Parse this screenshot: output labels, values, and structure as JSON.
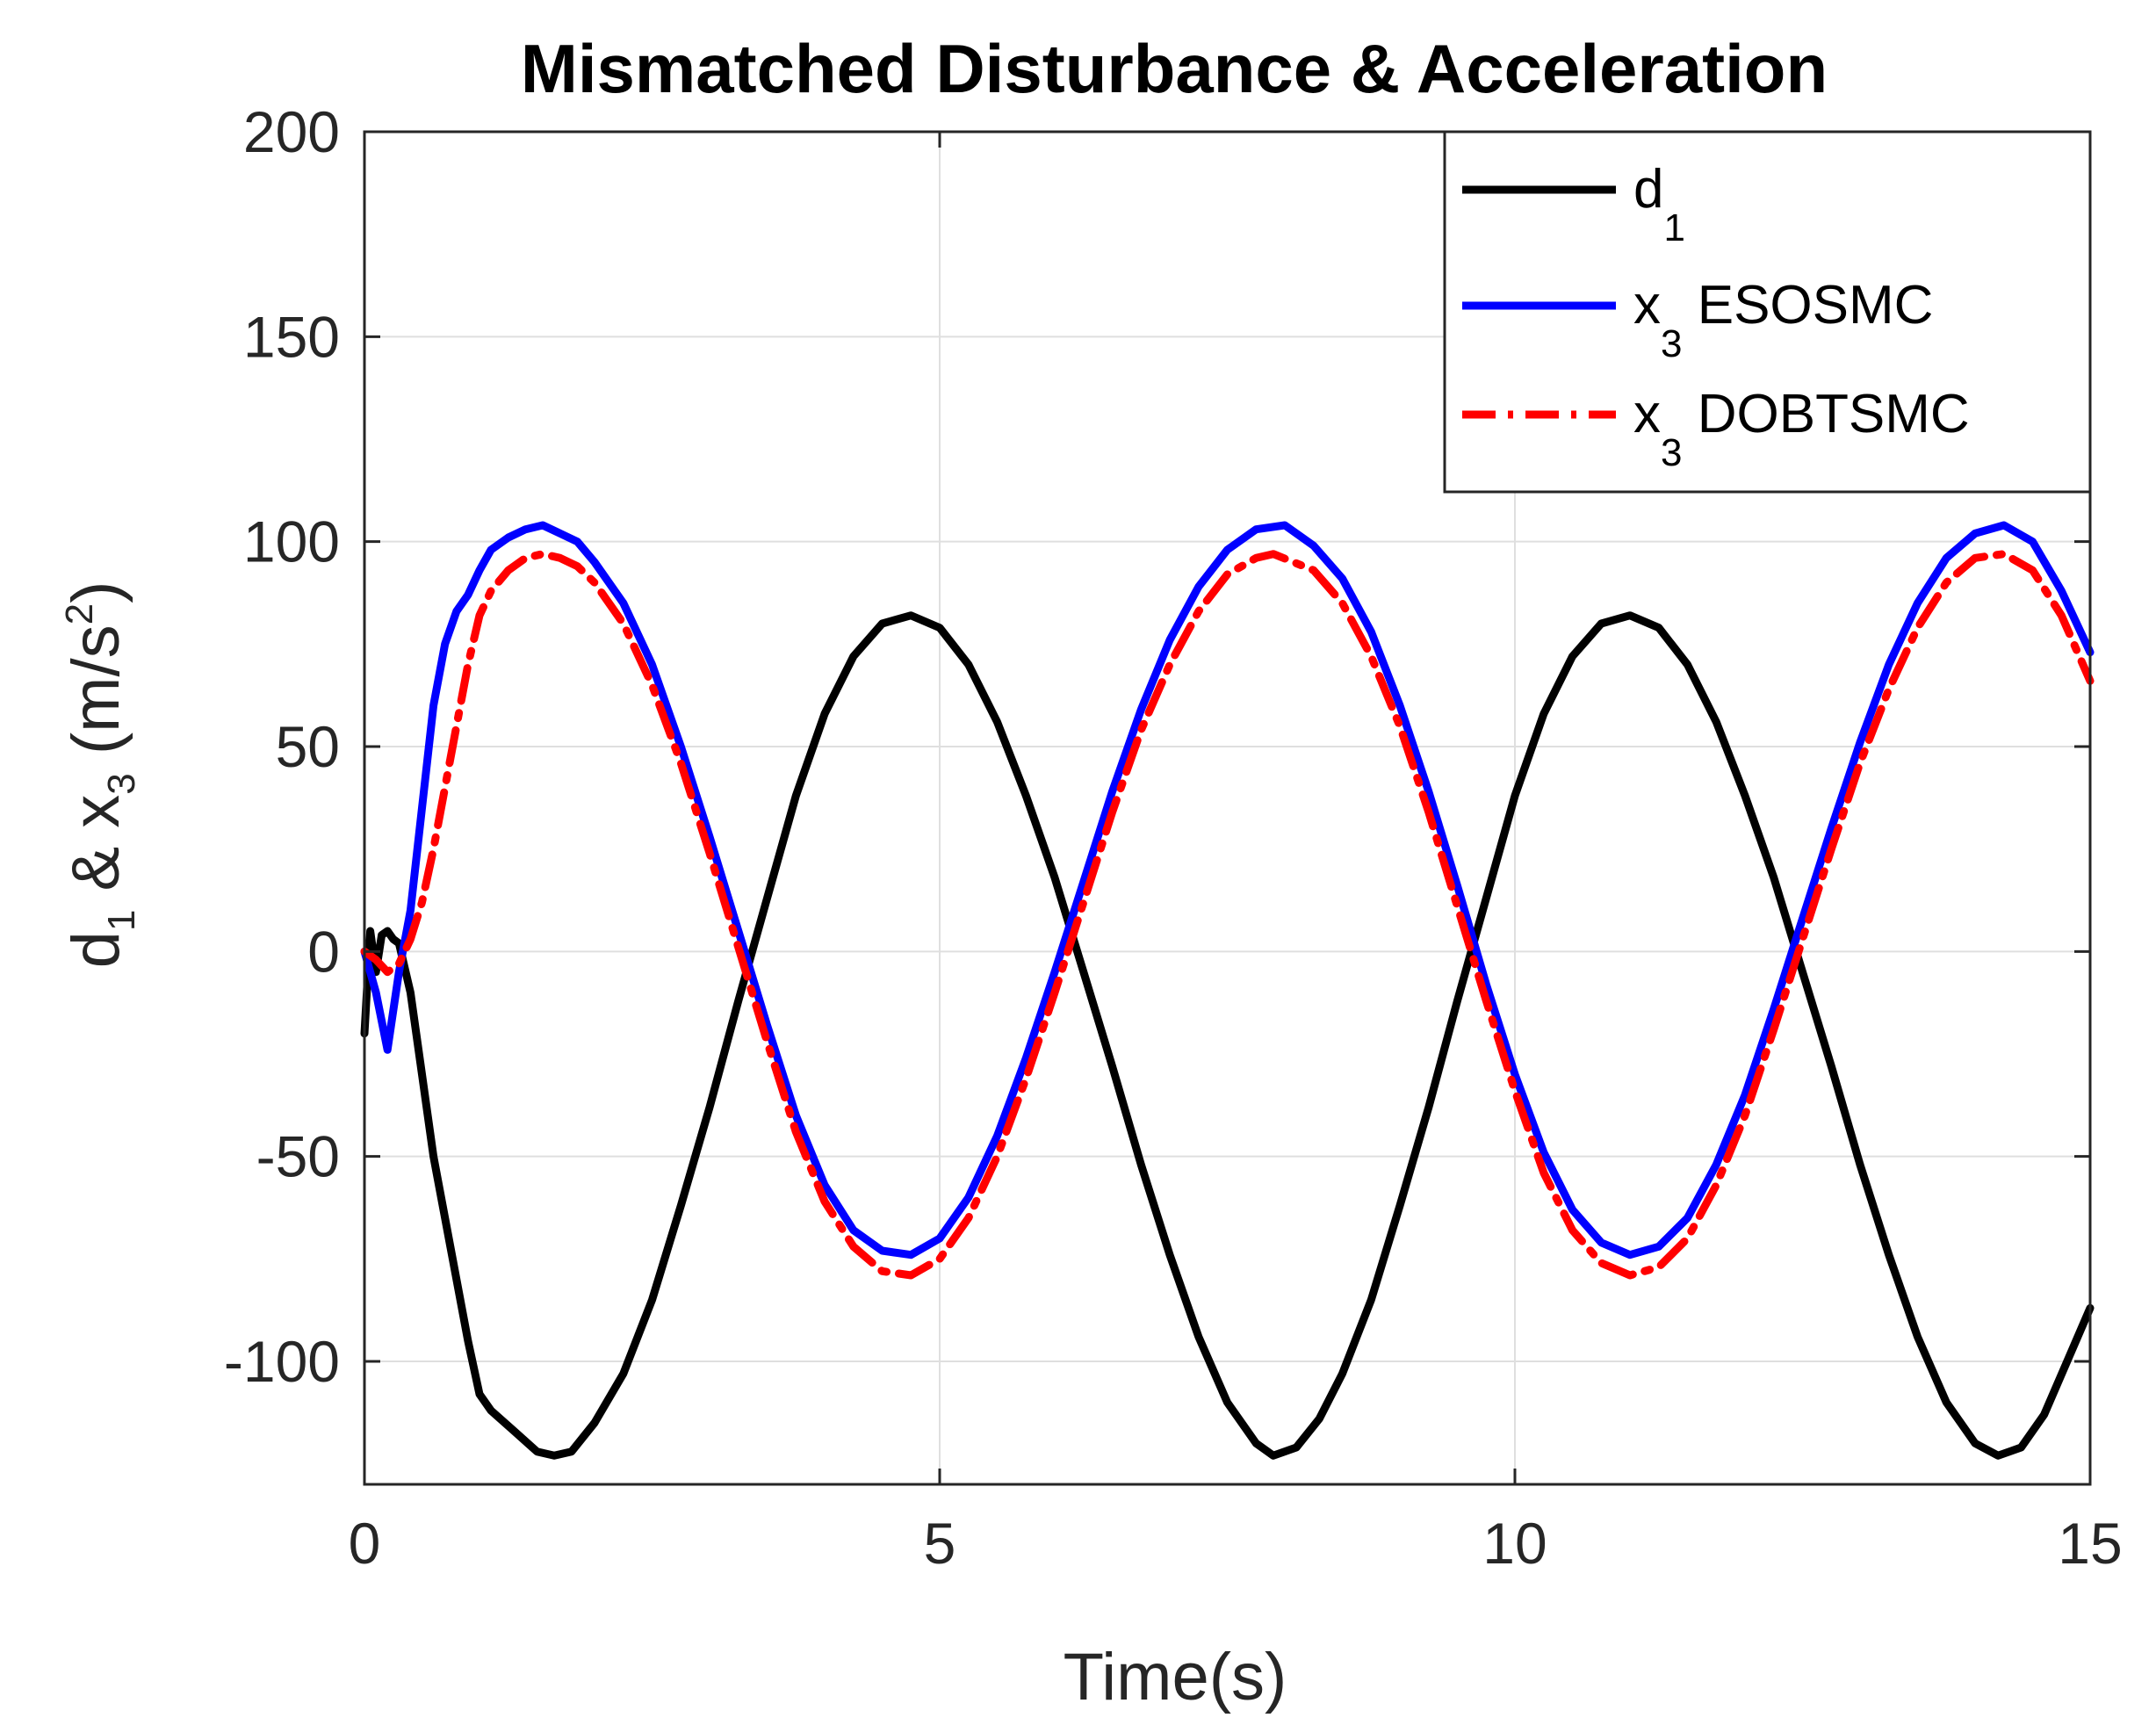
{
  "chart_data": {
    "type": "line",
    "title": "Mismatched Disturbance & Acceleration",
    "xlabel": "Time(s)",
    "ylabel": {
      "parts": [
        "d",
        "1",
        " & x",
        "3",
        " (m/s",
        "2",
        ")"
      ]
    },
    "xlim": [
      0,
      15
    ],
    "ylim": [
      -130,
      200
    ],
    "xticks": [
      0,
      5,
      10,
      15
    ],
    "yticks": [
      -100,
      -50,
      0,
      50,
      100,
      150,
      200
    ],
    "xtick_labels": [
      "0",
      "5",
      "10",
      "15"
    ],
    "ytick_labels": [
      "-100",
      "-50",
      "0",
      "50",
      "100",
      "150",
      "200"
    ],
    "grid": true,
    "legend_position": "top-right",
    "series": [
      {
        "name": "d1",
        "legend_base": "d",
        "legend_sub": "1",
        "legend_suffix": "",
        "color": "#000000",
        "dash": "solid",
        "points": [
          [
            0,
            -20
          ],
          [
            0.05,
            5
          ],
          [
            0.1,
            -5
          ],
          [
            0.15,
            4
          ],
          [
            0.2,
            5
          ],
          [
            0.25,
            3
          ],
          [
            0.3,
            2
          ],
          [
            0.4,
            -10
          ],
          [
            0.5,
            -30
          ],
          [
            0.6,
            -50
          ],
          [
            0.7,
            -65
          ],
          [
            0.8,
            -80
          ],
          [
            0.9,
            -95
          ],
          [
            1.0,
            -108
          ],
          [
            1.1,
            -112
          ],
          [
            1.3,
            -117
          ],
          [
            1.5,
            -122
          ],
          [
            1.65,
            -123
          ],
          [
            1.8,
            -122
          ],
          [
            2.0,
            -115
          ],
          [
            2.25,
            -103
          ],
          [
            2.5,
            -85
          ],
          [
            2.75,
            -62
          ],
          [
            3.0,
            -38
          ],
          [
            3.25,
            -12
          ],
          [
            3.5,
            13
          ],
          [
            3.75,
            38
          ],
          [
            4.0,
            58
          ],
          [
            4.25,
            72
          ],
          [
            4.5,
            80
          ],
          [
            4.75,
            82
          ],
          [
            5.0,
            79
          ],
          [
            5.25,
            70
          ],
          [
            5.5,
            56
          ],
          [
            5.75,
            38
          ],
          [
            6.0,
            18
          ],
          [
            6.25,
            -5
          ],
          [
            6.5,
            -28
          ],
          [
            6.75,
            -52
          ],
          [
            7.0,
            -74
          ],
          [
            7.25,
            -94
          ],
          [
            7.5,
            -110
          ],
          [
            7.75,
            -120
          ],
          [
            7.9,
            -123
          ],
          [
            8.1,
            -121
          ],
          [
            8.3,
            -114
          ],
          [
            8.5,
            -103
          ],
          [
            8.75,
            -85
          ],
          [
            9.0,
            -62
          ],
          [
            9.25,
            -38
          ],
          [
            9.5,
            -12
          ],
          [
            9.75,
            13
          ],
          [
            10.0,
            38
          ],
          [
            10.25,
            58
          ],
          [
            10.5,
            72
          ],
          [
            10.75,
            80
          ],
          [
            11.0,
            82
          ],
          [
            11.25,
            79
          ],
          [
            11.5,
            70
          ],
          [
            11.75,
            56
          ],
          [
            12.0,
            38
          ],
          [
            12.25,
            18
          ],
          [
            12.5,
            -5
          ],
          [
            12.75,
            -28
          ],
          [
            13.0,
            -52
          ],
          [
            13.25,
            -74
          ],
          [
            13.5,
            -94
          ],
          [
            13.75,
            -110
          ],
          [
            14.0,
            -120
          ],
          [
            14.2,
            -123
          ],
          [
            14.4,
            -121
          ],
          [
            14.6,
            -113
          ],
          [
            14.8,
            -100
          ],
          [
            15.0,
            -87
          ]
        ]
      },
      {
        "name": "x3 ESOSMC",
        "legend_base": "x",
        "legend_sub": "3",
        "legend_suffix": " ESOSMC",
        "color": "#0000ff",
        "dash": "solid",
        "points": [
          [
            0,
            0
          ],
          [
            0.1,
            -10
          ],
          [
            0.2,
            -24
          ],
          [
            0.3,
            -5
          ],
          [
            0.4,
            10
          ],
          [
            0.5,
            35
          ],
          [
            0.6,
            60
          ],
          [
            0.7,
            75
          ],
          [
            0.8,
            83
          ],
          [
            0.9,
            87
          ],
          [
            1.0,
            93
          ],
          [
            1.1,
            98
          ],
          [
            1.25,
            101
          ],
          [
            1.4,
            103
          ],
          [
            1.55,
            104
          ],
          [
            1.7,
            102
          ],
          [
            1.85,
            100
          ],
          [
            2.0,
            95
          ],
          [
            2.25,
            85
          ],
          [
            2.5,
            70
          ],
          [
            2.75,
            50
          ],
          [
            3.0,
            28
          ],
          [
            3.25,
            5
          ],
          [
            3.5,
            -18
          ],
          [
            3.75,
            -40
          ],
          [
            4.0,
            -57
          ],
          [
            4.25,
            -68
          ],
          [
            4.5,
            -73
          ],
          [
            4.75,
            -74
          ],
          [
            5.0,
            -70
          ],
          [
            5.25,
            -60
          ],
          [
            5.5,
            -45
          ],
          [
            5.75,
            -26
          ],
          [
            6.0,
            -5
          ],
          [
            6.25,
            17
          ],
          [
            6.5,
            39
          ],
          [
            6.75,
            59
          ],
          [
            7.0,
            76
          ],
          [
            7.25,
            89
          ],
          [
            7.5,
            98
          ],
          [
            7.75,
            103
          ],
          [
            8.0,
            104
          ],
          [
            8.25,
            99
          ],
          [
            8.5,
            91
          ],
          [
            8.75,
            78
          ],
          [
            9.0,
            60
          ],
          [
            9.25,
            39
          ],
          [
            9.5,
            16
          ],
          [
            9.75,
            -8
          ],
          [
            10.0,
            -30
          ],
          [
            10.25,
            -49
          ],
          [
            10.5,
            -63
          ],
          [
            10.75,
            -71
          ],
          [
            11.0,
            -74
          ],
          [
            11.25,
            -72
          ],
          [
            11.5,
            -65
          ],
          [
            11.75,
            -52
          ],
          [
            12.0,
            -35
          ],
          [
            12.25,
            -14
          ],
          [
            12.5,
            8
          ],
          [
            12.75,
            30
          ],
          [
            13.0,
            51
          ],
          [
            13.25,
            70
          ],
          [
            13.5,
            85
          ],
          [
            13.75,
            96
          ],
          [
            14.0,
            102
          ],
          [
            14.25,
            104
          ],
          [
            14.5,
            100
          ],
          [
            14.75,
            88
          ],
          [
            15.0,
            73
          ]
        ]
      },
      {
        "name": "x3 DOBTSMC",
        "legend_base": "x",
        "legend_sub": "3",
        "legend_suffix": " DOBTSMC",
        "color": "#ff0000",
        "dash": "dashdot",
        "points": [
          [
            0,
            0
          ],
          [
            0.1,
            -2
          ],
          [
            0.2,
            -5
          ],
          [
            0.3,
            -3
          ],
          [
            0.4,
            3
          ],
          [
            0.5,
            12
          ],
          [
            0.6,
            25
          ],
          [
            0.7,
            40
          ],
          [
            0.8,
            55
          ],
          [
            0.9,
            70
          ],
          [
            1.0,
            82
          ],
          [
            1.1,
            88
          ],
          [
            1.25,
            93
          ],
          [
            1.4,
            96
          ],
          [
            1.55,
            97
          ],
          [
            1.7,
            96
          ],
          [
            1.85,
            94
          ],
          [
            2.0,
            90
          ],
          [
            2.25,
            80
          ],
          [
            2.5,
            65
          ],
          [
            2.75,
            46
          ],
          [
            3.0,
            24
          ],
          [
            3.25,
            1
          ],
          [
            3.5,
            -22
          ],
          [
            3.75,
            -44
          ],
          [
            4.0,
            -61
          ],
          [
            4.25,
            -72
          ],
          [
            4.5,
            -78
          ],
          [
            4.75,
            -79
          ],
          [
            5.0,
            -75
          ],
          [
            5.25,
            -65
          ],
          [
            5.5,
            -50
          ],
          [
            5.75,
            -31
          ],
          [
            6.0,
            -10
          ],
          [
            6.25,
            12
          ],
          [
            6.5,
            34
          ],
          [
            6.75,
            54
          ],
          [
            7.0,
            70
          ],
          [
            7.25,
            83
          ],
          [
            7.5,
            92
          ],
          [
            7.75,
            96
          ],
          [
            7.9,
            97
          ],
          [
            8.25,
            93
          ],
          [
            8.5,
            85
          ],
          [
            8.75,
            72
          ],
          [
            9.0,
            55
          ],
          [
            9.25,
            34
          ],
          [
            9.5,
            11
          ],
          [
            9.75,
            -12
          ],
          [
            10.0,
            -34
          ],
          [
            10.25,
            -54
          ],
          [
            10.5,
            -68
          ],
          [
            10.75,
            -76
          ],
          [
            11.0,
            -79
          ],
          [
            11.25,
            -77
          ],
          [
            11.5,
            -70
          ],
          [
            11.75,
            -57
          ],
          [
            12.0,
            -40
          ],
          [
            12.25,
            -19
          ],
          [
            12.5,
            3
          ],
          [
            12.75,
            25
          ],
          [
            13.0,
            46
          ],
          [
            13.25,
            64
          ],
          [
            13.5,
            79
          ],
          [
            13.75,
            90
          ],
          [
            14.0,
            96
          ],
          [
            14.25,
            97
          ],
          [
            14.5,
            93
          ],
          [
            14.75,
            82
          ],
          [
            15.0,
            66
          ]
        ]
      }
    ]
  }
}
